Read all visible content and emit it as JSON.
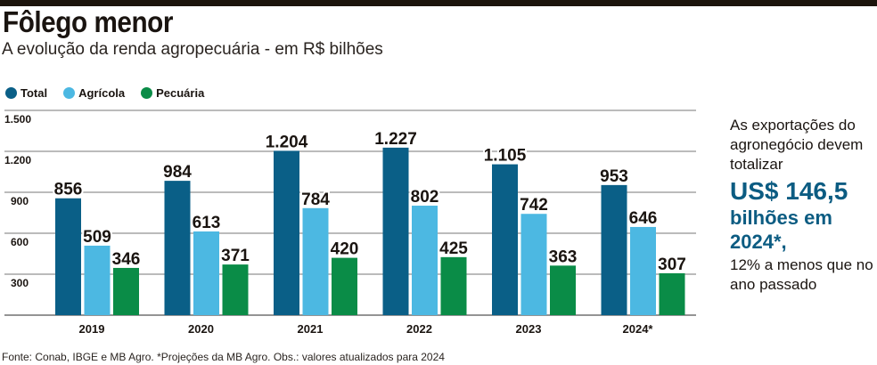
{
  "header": {
    "title": "Fôlego menor",
    "subtitle": "A evolução da renda agropecuária - em R$ bilhões"
  },
  "legend": [
    {
      "label": "Total",
      "color": "#0a5f87"
    },
    {
      "label": "Agrícola",
      "color": "#4cb8e2"
    },
    {
      "label": "Pecuária",
      "color": "#0a8c47"
    }
  ],
  "side_note": {
    "line1": "As exportações do agronegócio devem totalizar",
    "highlight_value": "US$ 146,5",
    "highlight_rest": "bilhões em 2024*,",
    "line2": "12% a menos que no ano passado"
  },
  "footer": {
    "source": "Fonte: Conab, IBGE e MB Agro. *Projeções da MB Agro. Obs.: valores atualizados para 2024"
  },
  "chart_data": {
    "type": "bar",
    "title": "Fôlego menor",
    "subtitle": "A evolução da renda agropecuária - em R$ bilhões",
    "xlabel": "",
    "ylabel": "R$ bilhões",
    "categories": [
      "2019",
      "2020",
      "2021",
      "2022",
      "2023",
      "2024*"
    ],
    "series": [
      {
        "name": "Total",
        "color": "#0a5f87",
        "values": [
          856,
          984,
          1204,
          1227,
          1105,
          953
        ],
        "labels": [
          "856",
          "984",
          "1.204",
          "1.227",
          "1.105",
          "953"
        ]
      },
      {
        "name": "Agrícola",
        "color": "#4cb8e2",
        "values": [
          509,
          613,
          784,
          802,
          742,
          646
        ],
        "labels": [
          "509",
          "613",
          "784",
          "802",
          "742",
          "646"
        ]
      },
      {
        "name": "Pecuária",
        "color": "#0a8c47",
        "values": [
          346,
          371,
          420,
          425,
          363,
          307
        ],
        "labels": [
          "346",
          "371",
          "420",
          "425",
          "363",
          "307"
        ]
      }
    ],
    "yticks": [
      300,
      600,
      900,
      1200,
      1500
    ],
    "ytick_labels": [
      "300",
      "600",
      "900",
      "1.200",
      "1.500"
    ],
    "ylim": [
      0,
      1500
    ],
    "grid": true,
    "legend_position": "top-left"
  }
}
